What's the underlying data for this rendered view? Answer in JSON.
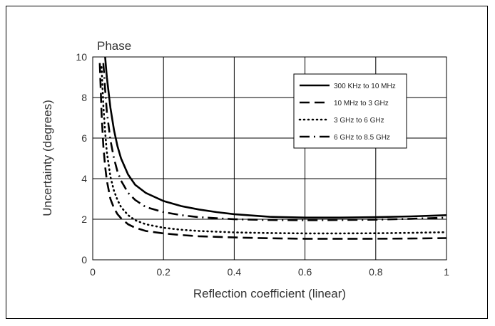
{
  "chart_data": {
    "type": "line",
    "title": "Phase",
    "xlabel": "Reflection coefficient (linear)",
    "ylabel": "Uncertainty (degrees)",
    "xlim": [
      0,
      1
    ],
    "ylim": [
      0,
      10
    ],
    "x_ticks": [
      "0",
      "0.2",
      "0.4",
      "0.6",
      "0.8",
      "1"
    ],
    "y_ticks": [
      "0",
      "2",
      "4",
      "6",
      "8",
      "10"
    ],
    "grid": true,
    "legend_position": "top-right",
    "series": [
      {
        "name": "300 KHz to 10 MHz",
        "style": "solid",
        "x": [
          0.035,
          0.04,
          0.05,
          0.06,
          0.07,
          0.08,
          0.1,
          0.12,
          0.15,
          0.2,
          0.25,
          0.3,
          0.35,
          0.4,
          0.5,
          0.6,
          0.7,
          0.8,
          0.9,
          1.0
        ],
        "y": [
          10.0,
          9.0,
          7.5,
          6.4,
          5.6,
          5.0,
          4.2,
          3.7,
          3.3,
          2.9,
          2.65,
          2.48,
          2.35,
          2.25,
          2.12,
          2.08,
          2.08,
          2.1,
          2.14,
          2.2
        ]
      },
      {
        "name": "10 MHz to 3 GHz",
        "style": "dashed",
        "x": [
          0.02,
          0.025,
          0.03,
          0.035,
          0.04,
          0.05,
          0.06,
          0.07,
          0.08,
          0.1,
          0.12,
          0.15,
          0.2,
          0.25,
          0.3,
          0.4,
          0.5,
          0.6,
          0.7,
          0.8,
          0.9,
          1.0
        ],
        "y": [
          9.7,
          7.2,
          5.6,
          4.6,
          3.9,
          3.0,
          2.55,
          2.25,
          2.05,
          1.75,
          1.58,
          1.42,
          1.3,
          1.22,
          1.16,
          1.1,
          1.06,
          1.04,
          1.04,
          1.04,
          1.05,
          1.07
        ]
      },
      {
        "name": "3 GHz to 6 GHz",
        "style": "dotted",
        "x": [
          0.025,
          0.03,
          0.035,
          0.04,
          0.05,
          0.06,
          0.07,
          0.08,
          0.1,
          0.12,
          0.15,
          0.2,
          0.25,
          0.3,
          0.4,
          0.5,
          0.6,
          0.7,
          0.8,
          0.9,
          1.0
        ],
        "y": [
          9.5,
          7.6,
          6.3,
          5.3,
          4.1,
          3.4,
          2.95,
          2.6,
          2.2,
          1.95,
          1.75,
          1.58,
          1.48,
          1.42,
          1.35,
          1.32,
          1.3,
          1.3,
          1.31,
          1.33,
          1.36
        ]
      },
      {
        "name": "6 GHz to 8.5 GHz",
        "style": "dash-dot",
        "x": [
          0.03,
          0.035,
          0.04,
          0.05,
          0.06,
          0.07,
          0.08,
          0.1,
          0.12,
          0.15,
          0.2,
          0.25,
          0.3,
          0.4,
          0.5,
          0.6,
          0.7,
          0.8,
          0.9,
          1.0
        ],
        "y": [
          9.7,
          8.4,
          7.3,
          5.9,
          5.0,
          4.35,
          3.9,
          3.3,
          2.95,
          2.6,
          2.35,
          2.2,
          2.1,
          2.0,
          1.96,
          1.95,
          1.96,
          1.98,
          2.02,
          2.08
        ]
      }
    ]
  }
}
